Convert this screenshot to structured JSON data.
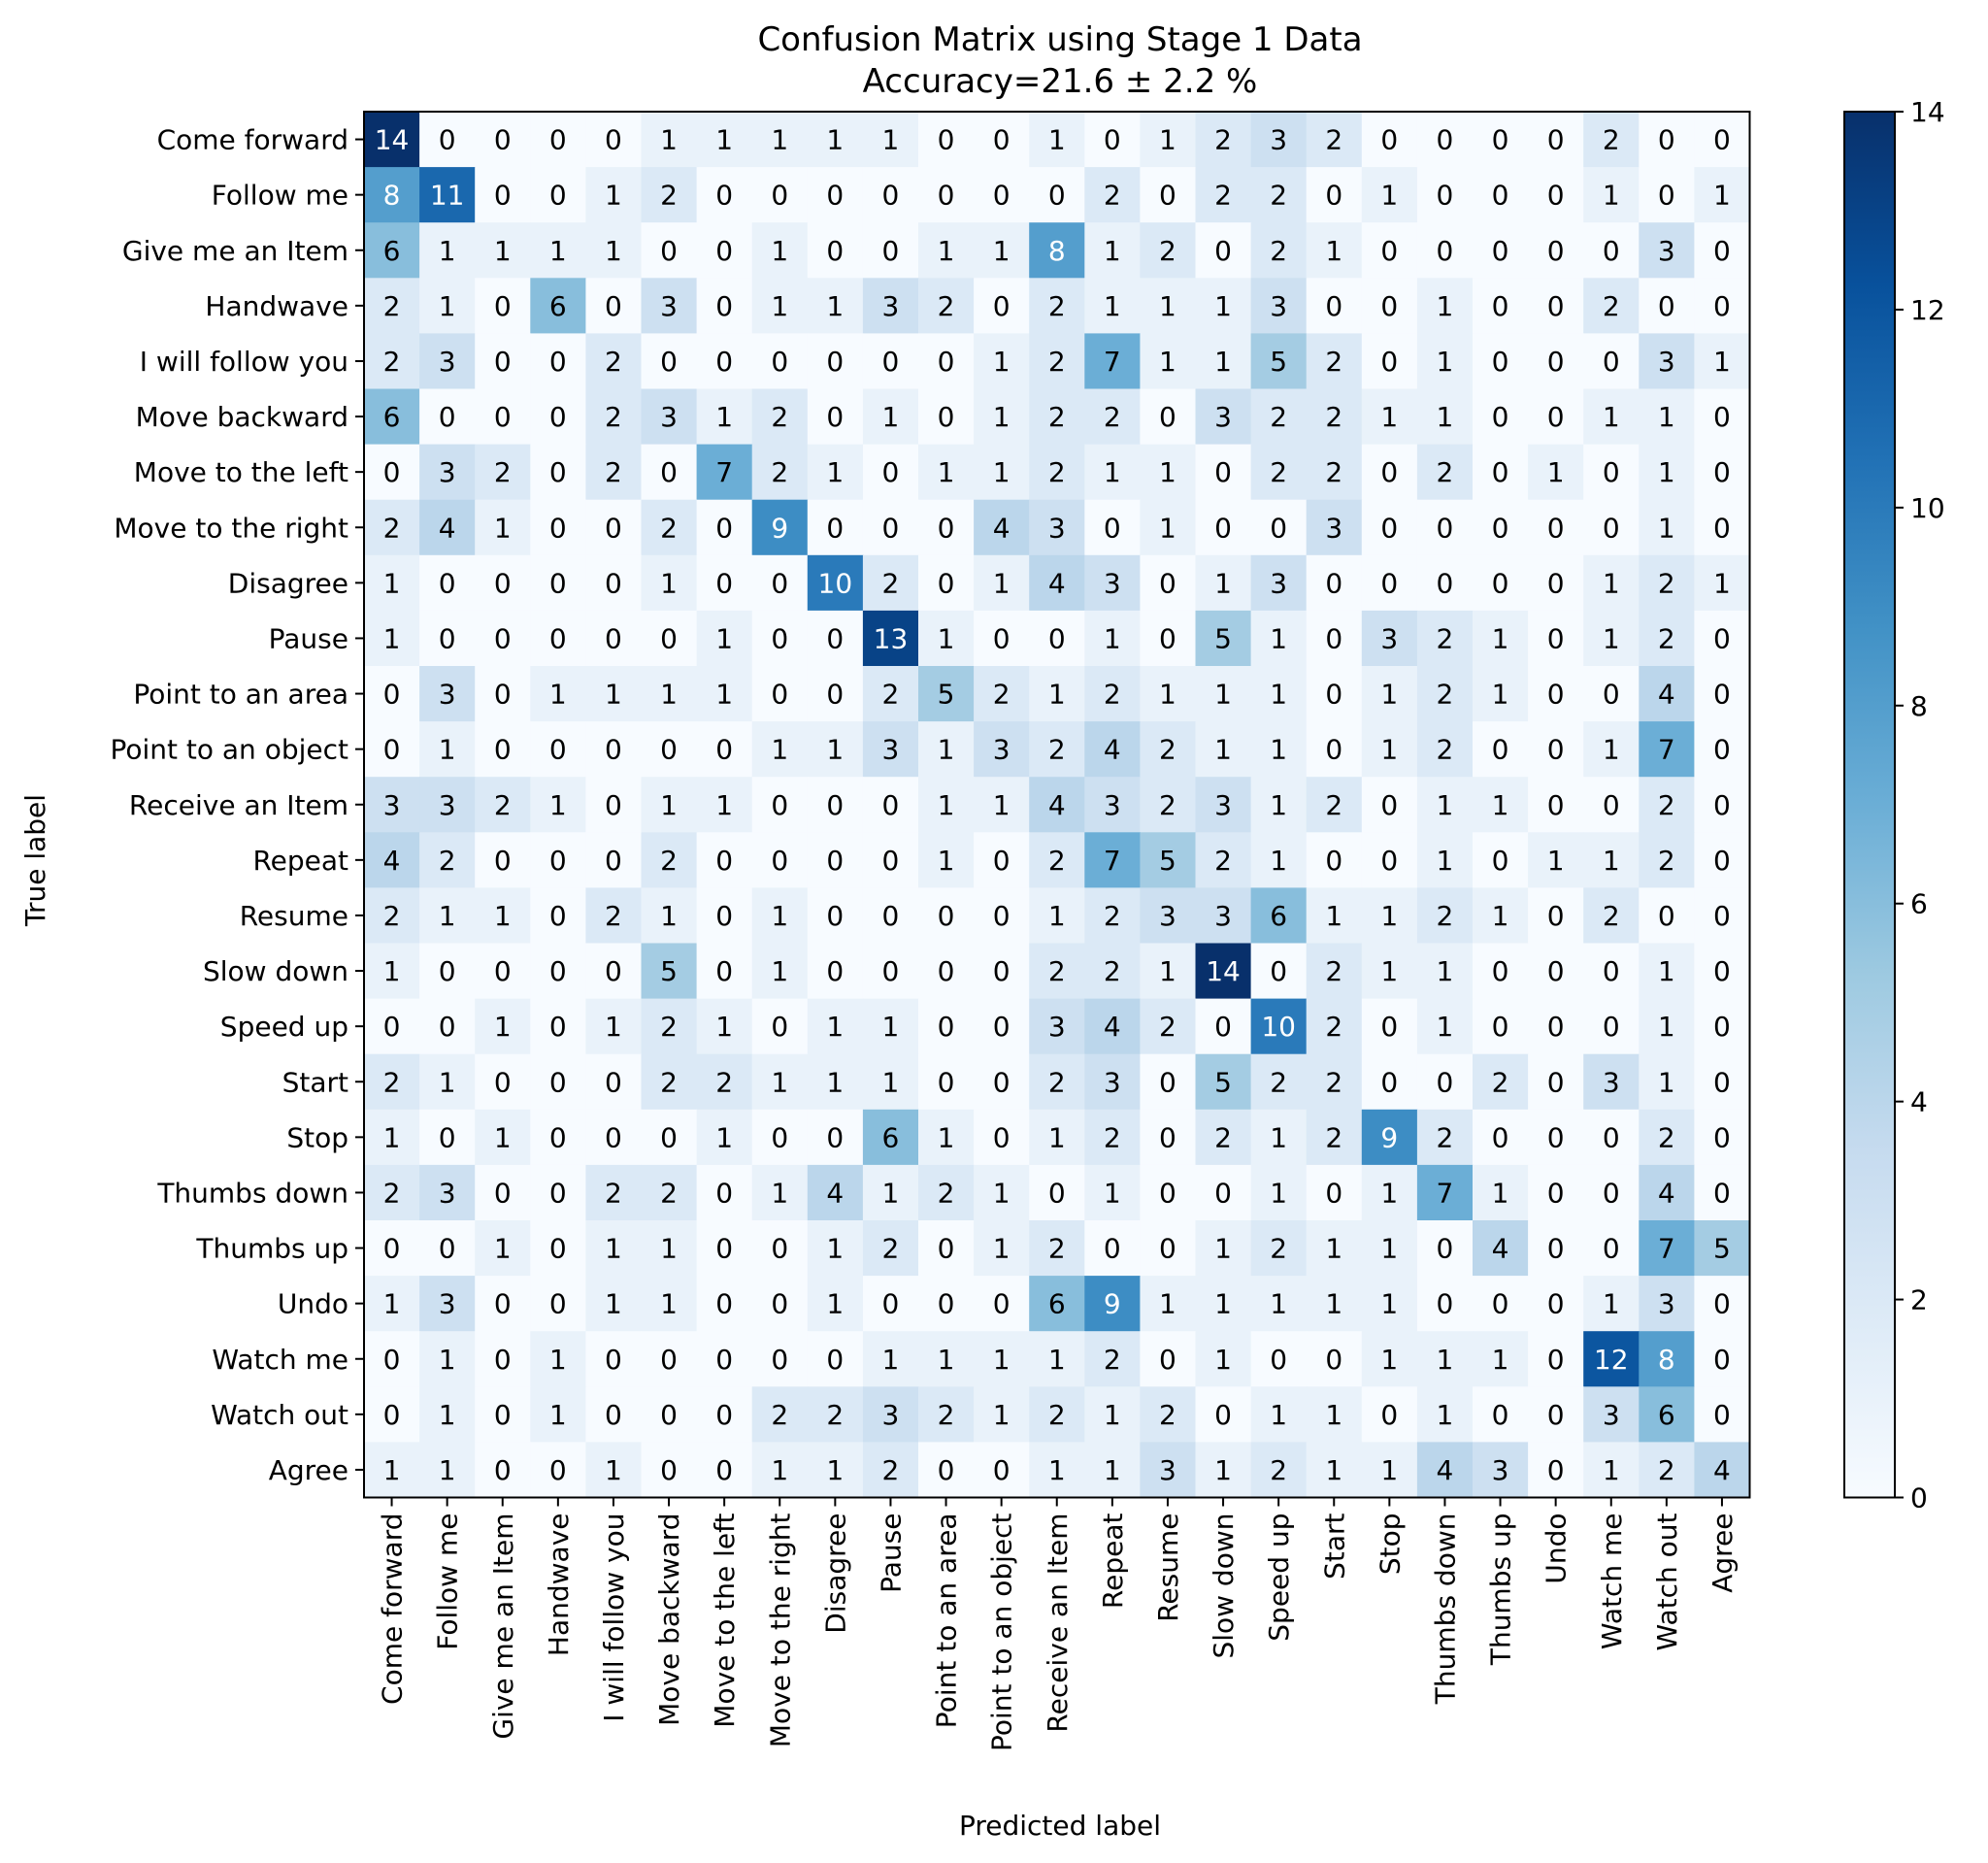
{
  "chart_data": {
    "type": "heatmap",
    "title": "Confusion Matrix using Stage 1 Data",
    "subtitle": "Accuracy=21.6 ± 2.2 %",
    "xlabel": "Predicted label",
    "ylabel": "True label",
    "colormap": "Blues",
    "colorbar": {
      "min": 0,
      "max": 14,
      "ticks": [
        0,
        2,
        4,
        6,
        8,
        10,
        12,
        14
      ]
    },
    "text_color_light": "#ffffff",
    "text_color_dark": "#000000",
    "row_labels": [
      "Come forward",
      "Follow me",
      "Give me an Item",
      "Handwave",
      "I will follow you",
      "Move backward",
      "Move to the left",
      "Move to the right",
      "Disagree",
      "Pause",
      "Point to an area",
      "Point to an object",
      "Receive an Item",
      "Repeat",
      "Resume",
      "Slow down",
      "Speed up",
      "Start",
      "Stop",
      "Thumbs down",
      "Thumbs up",
      "Undo",
      "Watch me",
      "Watch out",
      "Agree"
    ],
    "col_labels": [
      "Come forward",
      "Follow me",
      "Give me an Item",
      "Handwave",
      "I will follow you",
      "Move backward",
      "Move to the left",
      "Move to the right",
      "Disagree",
      "Pause",
      "Point to an area",
      "Point to an object",
      "Receive an Item",
      "Repeat",
      "Resume",
      "Slow down",
      "Speed up",
      "Start",
      "Stop",
      "Thumbs down",
      "Thumbs up",
      "Undo",
      "Watch me",
      "Watch out",
      "Agree"
    ],
    "matrix": [
      [
        14,
        0,
        0,
        0,
        0,
        1,
        1,
        1,
        1,
        1,
        0,
        0,
        1,
        0,
        1,
        2,
        3,
        2,
        0,
        0,
        0,
        0,
        2,
        0,
        0
      ],
      [
        8,
        11,
        0,
        0,
        1,
        2,
        0,
        0,
        0,
        0,
        0,
        0,
        0,
        2,
        0,
        2,
        2,
        0,
        1,
        0,
        0,
        0,
        1,
        0,
        1
      ],
      [
        6,
        1,
        1,
        1,
        1,
        0,
        0,
        1,
        0,
        0,
        1,
        1,
        8,
        1,
        2,
        0,
        2,
        1,
        0,
        0,
        0,
        0,
        0,
        3,
        0
      ],
      [
        2,
        1,
        0,
        6,
        0,
        3,
        0,
        1,
        1,
        3,
        2,
        0,
        2,
        1,
        1,
        1,
        3,
        0,
        0,
        1,
        0,
        0,
        2,
        0,
        0
      ],
      [
        2,
        3,
        0,
        0,
        2,
        0,
        0,
        0,
        0,
        0,
        0,
        1,
        2,
        7,
        1,
        1,
        5,
        2,
        0,
        1,
        0,
        0,
        0,
        3,
        1
      ],
      [
        6,
        0,
        0,
        0,
        2,
        3,
        1,
        2,
        0,
        1,
        0,
        1,
        2,
        2,
        0,
        3,
        2,
        2,
        1,
        1,
        0,
        0,
        1,
        1,
        0
      ],
      [
        0,
        3,
        2,
        0,
        2,
        0,
        7,
        2,
        1,
        0,
        1,
        1,
        2,
        1,
        1,
        0,
        2,
        2,
        0,
        2,
        0,
        1,
        0,
        1,
        0
      ],
      [
        2,
        4,
        1,
        0,
        0,
        2,
        0,
        9,
        0,
        0,
        0,
        4,
        3,
        0,
        1,
        0,
        0,
        3,
        0,
        0,
        0,
        0,
        0,
        1,
        0
      ],
      [
        1,
        0,
        0,
        0,
        0,
        1,
        0,
        0,
        10,
        2,
        0,
        1,
        4,
        3,
        0,
        1,
        3,
        0,
        0,
        0,
        0,
        0,
        1,
        2,
        1
      ],
      [
        1,
        0,
        0,
        0,
        0,
        0,
        1,
        0,
        0,
        13,
        1,
        0,
        0,
        1,
        0,
        5,
        1,
        0,
        3,
        2,
        1,
        0,
        1,
        2,
        0
      ],
      [
        0,
        3,
        0,
        1,
        1,
        1,
        1,
        0,
        0,
        2,
        5,
        2,
        1,
        2,
        1,
        1,
        1,
        0,
        1,
        2,
        1,
        0,
        0,
        4,
        0
      ],
      [
        0,
        1,
        0,
        0,
        0,
        0,
        0,
        1,
        1,
        3,
        1,
        3,
        2,
        4,
        2,
        1,
        1,
        0,
        1,
        2,
        0,
        0,
        1,
        7,
        0
      ],
      [
        3,
        3,
        2,
        1,
        0,
        1,
        1,
        0,
        0,
        0,
        1,
        1,
        4,
        3,
        2,
        3,
        1,
        2,
        0,
        1,
        1,
        0,
        0,
        2,
        0
      ],
      [
        4,
        2,
        0,
        0,
        0,
        2,
        0,
        0,
        0,
        0,
        1,
        0,
        2,
        7,
        5,
        2,
        1,
        0,
        0,
        1,
        0,
        1,
        1,
        2,
        0
      ],
      [
        2,
        1,
        1,
        0,
        2,
        1,
        0,
        1,
        0,
        0,
        0,
        0,
        1,
        2,
        3,
        3,
        6,
        1,
        1,
        2,
        1,
        0,
        2,
        0,
        0
      ],
      [
        1,
        0,
        0,
        0,
        0,
        5,
        0,
        1,
        0,
        0,
        0,
        0,
        2,
        2,
        1,
        14,
        0,
        2,
        1,
        1,
        0,
        0,
        0,
        1,
        0
      ],
      [
        0,
        0,
        1,
        0,
        1,
        2,
        1,
        0,
        1,
        1,
        0,
        0,
        3,
        4,
        2,
        0,
        10,
        2,
        0,
        1,
        0,
        0,
        0,
        1,
        0
      ],
      [
        2,
        1,
        0,
        0,
        0,
        2,
        2,
        1,
        1,
        1,
        0,
        0,
        2,
        3,
        0,
        5,
        2,
        2,
        0,
        0,
        2,
        0,
        3,
        1,
        0
      ],
      [
        1,
        0,
        1,
        0,
        0,
        0,
        1,
        0,
        0,
        6,
        1,
        0,
        1,
        2,
        0,
        2,
        1,
        2,
        9,
        2,
        0,
        0,
        0,
        2,
        0
      ],
      [
        2,
        3,
        0,
        0,
        2,
        2,
        0,
        1,
        4,
        1,
        2,
        1,
        0,
        1,
        0,
        0,
        1,
        0,
        1,
        7,
        1,
        0,
        0,
        4,
        0
      ],
      [
        0,
        0,
        1,
        0,
        1,
        1,
        0,
        0,
        1,
        2,
        0,
        1,
        2,
        0,
        0,
        1,
        2,
        1,
        1,
        0,
        4,
        0,
        0,
        7,
        5
      ],
      [
        1,
        3,
        0,
        0,
        1,
        1,
        0,
        0,
        1,
        0,
        0,
        0,
        6,
        9,
        1,
        1,
        1,
        1,
        1,
        0,
        0,
        0,
        1,
        3,
        0
      ],
      [
        0,
        1,
        0,
        1,
        0,
        0,
        0,
        0,
        0,
        1,
        1,
        1,
        1,
        2,
        0,
        1,
        0,
        0,
        1,
        1,
        1,
        0,
        12,
        8,
        0
      ],
      [
        0,
        1,
        0,
        1,
        0,
        0,
        0,
        2,
        2,
        3,
        2,
        1,
        2,
        1,
        2,
        0,
        1,
        1,
        0,
        1,
        0,
        0,
        3,
        6,
        0
      ],
      [
        1,
        1,
        0,
        0,
        1,
        0,
        0,
        1,
        1,
        2,
        0,
        0,
        1,
        1,
        3,
        1,
        2,
        1,
        1,
        4,
        3,
        0,
        1,
        2,
        4
      ]
    ]
  }
}
